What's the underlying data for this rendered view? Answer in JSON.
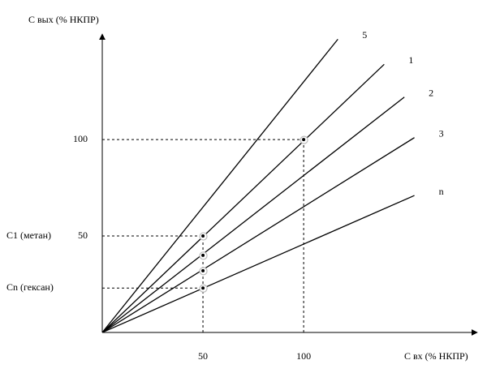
{
  "chart_data": {
    "type": "line",
    "xlabel": "С вх (% НКПР)",
    "ylabel": "С вых (% НКПР)",
    "xlim": [
      0,
      185
    ],
    "ylim": [
      0,
      153
    ],
    "xticks": [
      50,
      100
    ],
    "yticks": [
      50,
      100
    ],
    "y_annotations": [
      {
        "value": 50,
        "label": "С1 (метан)"
      },
      {
        "value": 23,
        "label": "Сn (гексан)"
      }
    ],
    "color": "#000000",
    "series": [
      {
        "name": "5",
        "x": [
          0,
          117
        ],
        "values": [
          0,
          152
        ]
      },
      {
        "name": "1",
        "x": [
          0,
          140
        ],
        "values": [
          0,
          139
        ]
      },
      {
        "name": "2",
        "x": [
          0,
          150
        ],
        "values": [
          0,
          122
        ]
      },
      {
        "name": "3",
        "x": [
          0,
          155
        ],
        "values": [
          0,
          101
        ]
      },
      {
        "name": "n",
        "x": [
          0,
          155
        ],
        "values": [
          0,
          71
        ]
      }
    ],
    "points": {
      "x": [
        50,
        50,
        50,
        50,
        100
      ],
      "values": [
        50,
        40,
        32,
        23,
        100
      ]
    }
  }
}
